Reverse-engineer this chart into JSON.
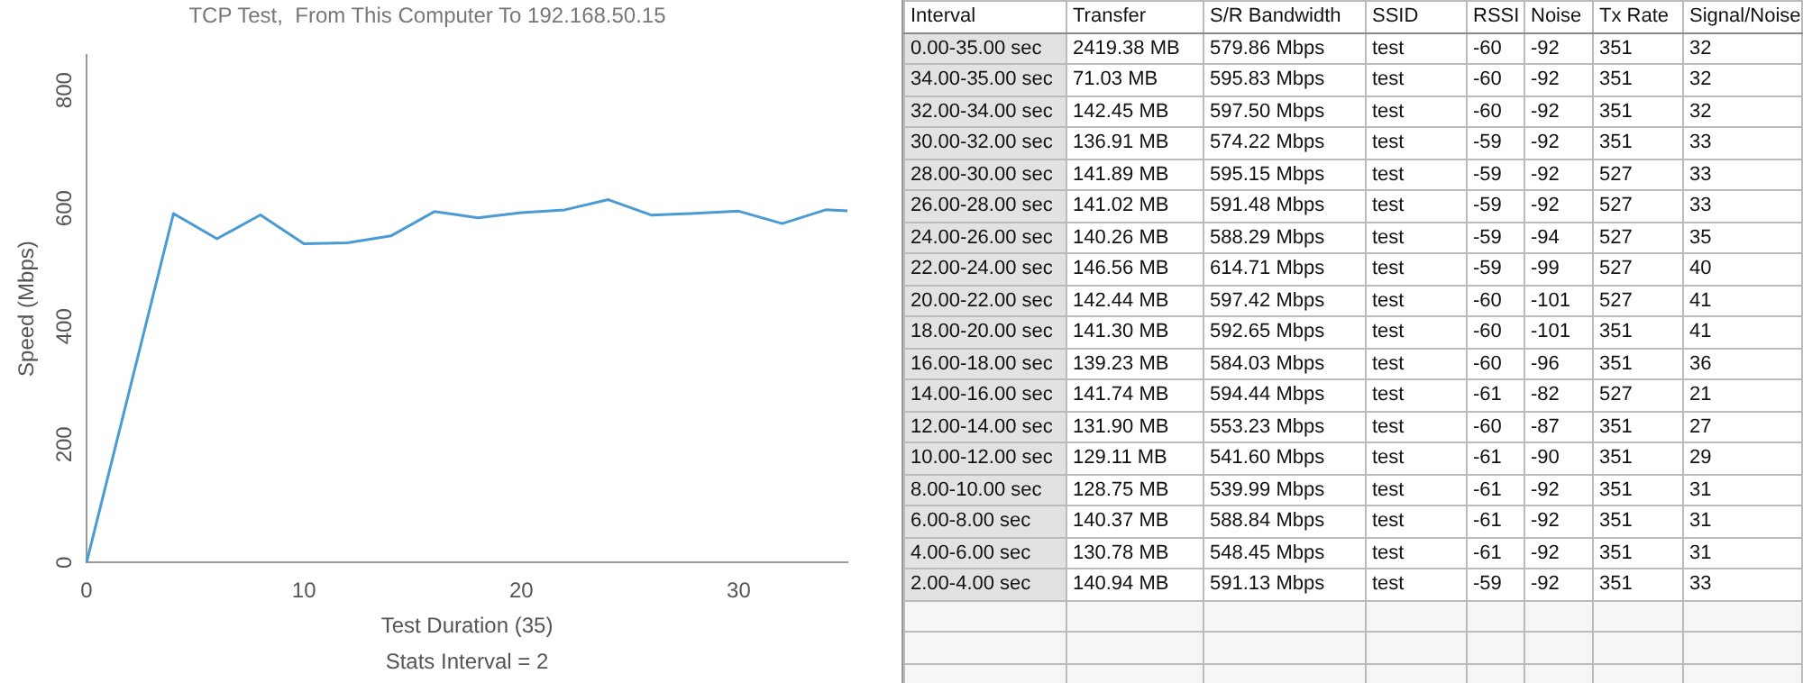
{
  "chart_data": [
    {
      "type": "line",
      "title": "TCP Test,  From This Computer To 192.168.50.15",
      "xlabel": "Test Duration (35)",
      "ylabel": "Speed (Mbps)",
      "annotations": [
        "Stats Interval = 2"
      ],
      "x": [
        0,
        4,
        6,
        8,
        10,
        12,
        14,
        16,
        18,
        20,
        22,
        24,
        26,
        28,
        30,
        32,
        34,
        35
      ],
      "series": [
        {
          "color": "#4a9ad4",
          "values": [
            0,
            591.13,
            548.45,
            588.84,
            539.99,
            541.6,
            553.23,
            594.44,
            584.03,
            592.65,
            597.42,
            614.71,
            588.29,
            591.48,
            595.15,
            574.22,
            597.5,
            595.83
          ]
        }
      ],
      "xlim": [
        0,
        35
      ],
      "xticks": [
        0,
        10,
        20,
        30
      ],
      "ylim": [
        0,
        860
      ],
      "yticks": [
        0,
        200,
        400,
        600,
        800
      ],
      "grid": false,
      "legend": false,
      "marker": "none",
      "line_style": "solid"
    },
    {
      "type": "other",
      "categories": [
        "Interval",
        "Transfer",
        "S/R Bandwidth",
        "SSID",
        "RSSI",
        "Noise",
        "Tx Rate",
        "Signal/Noise"
      ],
      "cell_labels": [
        [
          "0.00-35.00 sec",
          "2419.38 MB",
          "579.86 Mbps",
          "test",
          "-60",
          "-92",
          "351",
          "32"
        ],
        [
          "34.00-35.00 sec",
          "71.03 MB",
          "595.83 Mbps",
          "test",
          "-60",
          "-92",
          "351",
          "32"
        ],
        [
          "32.00-34.00 sec",
          "142.45 MB",
          "597.50 Mbps",
          "test",
          "-60",
          "-92",
          "351",
          "32"
        ],
        [
          "30.00-32.00 sec",
          "136.91 MB",
          "574.22 Mbps",
          "test",
          "-59",
          "-92",
          "351",
          "33"
        ],
        [
          "28.00-30.00 sec",
          "141.89 MB",
          "595.15 Mbps",
          "test",
          "-59",
          "-92",
          "527",
          "33"
        ],
        [
          "26.00-28.00 sec",
          "141.02 MB",
          "591.48 Mbps",
          "test",
          "-59",
          "-92",
          "527",
          "33"
        ],
        [
          "24.00-26.00 sec",
          "140.26 MB",
          "588.29 Mbps",
          "test",
          "-59",
          "-94",
          "527",
          "35"
        ],
        [
          "22.00-24.00 sec",
          "146.56 MB",
          "614.71 Mbps",
          "test",
          "-59",
          "-99",
          "527",
          "40"
        ],
        [
          "20.00-22.00 sec",
          "142.44 MB",
          "597.42 Mbps",
          "test",
          "-60",
          "-101",
          "527",
          "41"
        ],
        [
          "18.00-20.00 sec",
          "141.30 MB",
          "592.65 Mbps",
          "test",
          "-60",
          "-101",
          "351",
          "41"
        ],
        [
          "16.00-18.00 sec",
          "139.23 MB",
          "584.03 Mbps",
          "test",
          "-60",
          "-96",
          "351",
          "36"
        ],
        [
          "14.00-16.00 sec",
          "141.74 MB",
          "594.44 Mbps",
          "test",
          "-61",
          "-82",
          "527",
          "21"
        ],
        [
          "12.00-14.00 sec",
          "131.90 MB",
          "553.23 Mbps",
          "test",
          "-60",
          "-87",
          "351",
          "27"
        ],
        [
          "10.00-12.00 sec",
          "129.11 MB",
          "541.60 Mbps",
          "test",
          "-61",
          "-90",
          "351",
          "29"
        ],
        [
          "8.00-10.00 sec",
          "128.75 MB",
          "539.99 Mbps",
          "test",
          "-61",
          "-92",
          "351",
          "31"
        ],
        [
          "6.00-8.00 sec",
          "140.37 MB",
          "588.84 Mbps",
          "test",
          "-61",
          "-92",
          "351",
          "31"
        ],
        [
          "4.00-6.00 sec",
          "130.78 MB",
          "548.45 Mbps",
          "test",
          "-61",
          "-92",
          "351",
          "31"
        ],
        [
          "2.00-4.00 sec",
          "140.94 MB",
          "591.13 Mbps",
          "test",
          "-59",
          "-92",
          "351",
          "33"
        ]
      ]
    }
  ]
}
